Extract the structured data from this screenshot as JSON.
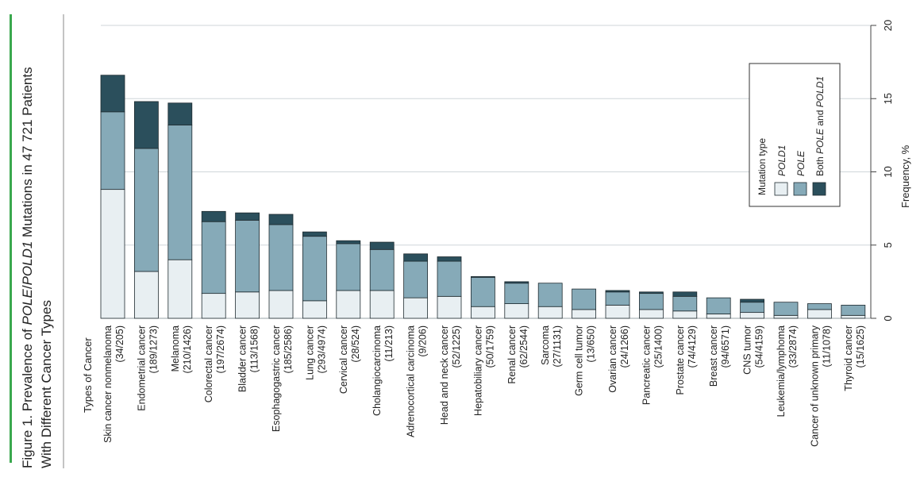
{
  "figure": {
    "title_part1": "Figure 1. Prevalence of ",
    "title_pole": "POLE",
    "title_slash": "/",
    "title_pold1": "POLD1",
    "title_part2": " Mutations in 47 721 Patients",
    "title_line2": "With Different Cancer Types"
  },
  "colors": {
    "accent": "#3aa84e",
    "pold1": "#e8eff2",
    "pole": "#86aab8",
    "both": "#2b4f5c",
    "stroke": "#1f2b30",
    "grid": "#cfd6da"
  },
  "legend": {
    "title": "Mutation type",
    "items": [
      {
        "key": "pold1",
        "label": "POLD1",
        "italic": true
      },
      {
        "key": "pole",
        "label": "POLE",
        "italic": true
      },
      {
        "key": "both",
        "label_prefix": "Both ",
        "label_pole": "POLE",
        "label_mid": " and ",
        "label_pold1": "POLD1"
      }
    ]
  },
  "chart_data": {
    "type": "bar",
    "stacked": true,
    "orientation": "vertical bars, figure rotated 90° (frequency axis on right)",
    "category_axis_label": "Types of Cancer",
    "ylabel": "Frequency, %",
    "ylim": [
      0,
      20
    ],
    "yticks": [
      0,
      5,
      10,
      15,
      20
    ],
    "grid": true,
    "legend_position": "top-right",
    "categories": [
      {
        "name": "Skin cancer nonmelanoma",
        "count": "(34/205)"
      },
      {
        "name": "Endometrial cancer",
        "count": "(189/1273)"
      },
      {
        "name": "Melanoma",
        "count": "(210/1426)"
      },
      {
        "name": "Colorectal cancer",
        "count": "(197/2674)"
      },
      {
        "name": "Bladder cancer",
        "count": "(113/1568)"
      },
      {
        "name": "Esophagogastric cancer",
        "count": "(185/2586)"
      },
      {
        "name": "Lung cancer",
        "count": "(293/4974)"
      },
      {
        "name": "Cervical cancer",
        "count": "(28/524)"
      },
      {
        "name": "Cholangiocarcinoma",
        "count": "(11/213)"
      },
      {
        "name": "Adrenocortical carcinoma",
        "count": "(9/206)"
      },
      {
        "name": "Head and neck cancer",
        "count": "(52/1225)"
      },
      {
        "name": "Hepatobiliary cancer",
        "count": "(50/1759)"
      },
      {
        "name": "Renal cancer",
        "count": "(62/2544)"
      },
      {
        "name": "Sarcoma",
        "count": "(27/1131)"
      },
      {
        "name": "Germ cell tumor",
        "count": "(13/650)"
      },
      {
        "name": "Ovarian cancer",
        "count": "(24/1266)"
      },
      {
        "name": "Pancreatic cancer",
        "count": "(25/1400)"
      },
      {
        "name": "Prostate cancer",
        "count": "(74/4129)"
      },
      {
        "name": "Breast cancer",
        "count": "(94/6571)"
      },
      {
        "name": "CNS tumor",
        "count": "(54/4159)"
      },
      {
        "name": "Leukemia/lymphoma",
        "count": "(33/2874)"
      },
      {
        "name": "Cancer of unknown primary",
        "count": "(11/1078)"
      },
      {
        "name": "Thyroid cancer",
        "count": "(15/1625)"
      }
    ],
    "series": [
      {
        "name": "POLD1",
        "key": "pold1",
        "values": [
          8.8,
          3.2,
          4.0,
          1.7,
          1.8,
          1.9,
          1.2,
          1.9,
          1.9,
          1.4,
          1.5,
          0.8,
          1.0,
          0.8,
          0.6,
          0.9,
          0.6,
          0.5,
          0.3,
          0.4,
          0.2,
          0.6,
          0.2
        ]
      },
      {
        "name": "POLE",
        "key": "pole",
        "values": [
          5.3,
          8.4,
          9.2,
          4.9,
          4.9,
          4.5,
          4.4,
          3.2,
          2.8,
          2.5,
          2.4,
          2.0,
          1.4,
          1.6,
          1.4,
          0.9,
          1.1,
          1.0,
          1.1,
          0.7,
          0.9,
          0.4,
          0.7
        ]
      },
      {
        "name": "Both POLE and POLD1",
        "key": "both",
        "values": [
          2.5,
          3.2,
          1.5,
          0.7,
          0.5,
          0.7,
          0.3,
          0.2,
          0.5,
          0.5,
          0.3,
          0.05,
          0.1,
          0.0,
          0.0,
          0.1,
          0.1,
          0.3,
          0.0,
          0.2,
          0.0,
          0.0,
          0.0
        ]
      }
    ]
  }
}
